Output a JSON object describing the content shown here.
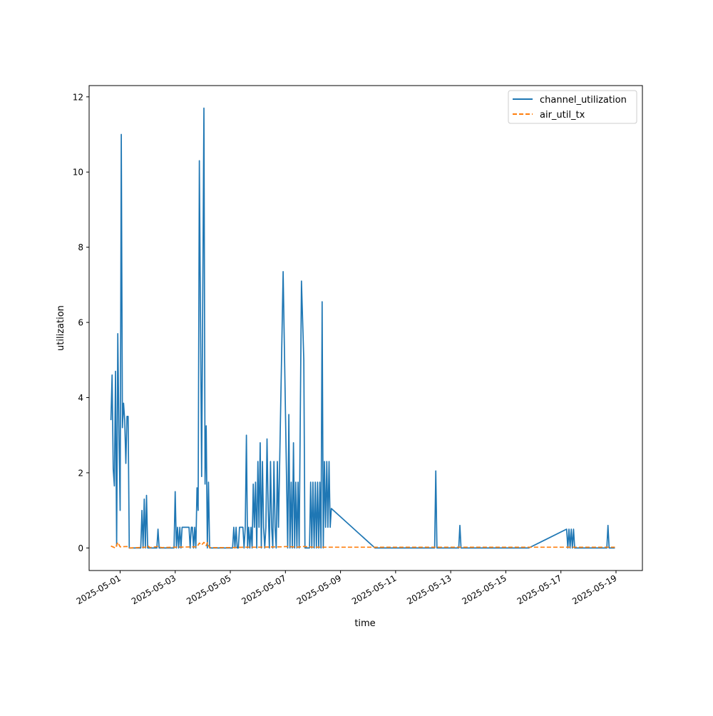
{
  "chart_data": {
    "type": "line",
    "title": "",
    "xlabel": "time",
    "ylabel": "utilization",
    "xlim": [
      "2025-04-29T21:00",
      "2025-05-19T23:00"
    ],
    "ylim": [
      -0.6,
      12.3
    ],
    "y_ticks": [
      0,
      2,
      4,
      6,
      8,
      10,
      12
    ],
    "x_ticks": [
      "2025-05-01",
      "2025-05-03",
      "2025-05-05",
      "2025-05-07",
      "2025-05-09",
      "2025-05-11",
      "2025-05-13",
      "2025-05-15",
      "2025-05-17",
      "2025-05-19"
    ],
    "grid": false,
    "legend": "top-right",
    "colors": {
      "channel_utilization": "#1f77b4",
      "air_util_tx": "#ff7f0e"
    },
    "series": [
      {
        "name": "channel_utilization",
        "style": "solid",
        "points": [
          [
            "2025-04-30T16:00",
            3.4
          ],
          [
            "2025-04-30T17:00",
            4.6
          ],
          [
            "2025-04-30T18:00",
            2.1
          ],
          [
            "2025-04-30T19:00",
            1.65
          ],
          [
            "2025-04-30T20:00",
            4.7
          ],
          [
            "2025-04-30T21:00",
            0.05
          ],
          [
            "2025-04-30T22:00",
            5.7
          ],
          [
            "2025-04-30T23:00",
            3.0
          ],
          [
            "2025-05-01T00:00",
            1.0
          ],
          [
            "2025-05-01T01:00",
            11.0
          ],
          [
            "2025-05-01T02:00",
            3.2
          ],
          [
            "2025-05-01T03:00",
            3.85
          ],
          [
            "2025-05-01T04:00",
            3.4
          ],
          [
            "2025-05-01T05:00",
            2.25
          ],
          [
            "2025-05-01T06:00",
            3.5
          ],
          [
            "2025-05-01T07:00",
            3.5
          ],
          [
            "2025-05-01T08:00",
            0.0
          ],
          [
            "2025-05-01T15:00",
            0.0
          ],
          [
            "2025-05-01T18:00",
            0.0
          ],
          [
            "2025-05-01T19:00",
            1.0
          ],
          [
            "2025-05-01T20:00",
            0.0
          ],
          [
            "2025-05-01T21:00",
            1.3
          ],
          [
            "2025-05-01T22:00",
            0.0
          ],
          [
            "2025-05-01T23:00",
            1.4
          ],
          [
            "2025-05-02T00:00",
            0.0
          ],
          [
            "2025-05-02T08:00",
            0.0
          ],
          [
            "2025-05-02T09:00",
            0.5
          ],
          [
            "2025-05-02T10:00",
            0.0
          ],
          [
            "2025-05-02T23:00",
            0.0
          ],
          [
            "2025-05-03T00:00",
            1.5
          ],
          [
            "2025-05-03T01:00",
            0.0
          ],
          [
            "2025-05-03T02:00",
            0.55
          ],
          [
            "2025-05-03T03:00",
            0.0
          ],
          [
            "2025-05-03T04:00",
            0.55
          ],
          [
            "2025-05-03T05:00",
            0.0
          ],
          [
            "2025-05-03T06:00",
            0.55
          ],
          [
            "2025-05-03T12:00",
            0.55
          ],
          [
            "2025-05-03T13:00",
            0.0
          ],
          [
            "2025-05-03T14:00",
            0.55
          ],
          [
            "2025-05-03T15:00",
            0.55
          ],
          [
            "2025-05-03T16:00",
            0.0
          ],
          [
            "2025-05-03T17:00",
            0.55
          ],
          [
            "2025-05-03T18:00",
            0.0
          ],
          [
            "2025-05-03T19:00",
            1.6
          ],
          [
            "2025-05-03T20:00",
            1.0
          ],
          [
            "2025-05-03T21:00",
            10.3
          ],
          [
            "2025-05-03T23:00",
            1.9
          ],
          [
            "2025-05-04T01:00",
            11.7
          ],
          [
            "2025-05-04T02:00",
            1.7
          ],
          [
            "2025-05-04T03:00",
            3.25
          ],
          [
            "2025-05-04T04:00",
            0.0
          ],
          [
            "2025-05-04T05:00",
            1.75
          ],
          [
            "2025-05-04T06:00",
            0.0
          ],
          [
            "2025-05-05T02:00",
            0.0
          ],
          [
            "2025-05-05T03:00",
            0.55
          ],
          [
            "2025-05-05T04:00",
            0.0
          ],
          [
            "2025-05-05T05:00",
            0.55
          ],
          [
            "2025-05-05T06:00",
            0.0
          ],
          [
            "2025-05-05T07:00",
            0.0
          ],
          [
            "2025-05-05T08:00",
            0.55
          ],
          [
            "2025-05-05T11:00",
            0.55
          ],
          [
            "2025-05-05T12:00",
            0.0
          ],
          [
            "2025-05-05T13:00",
            0.55
          ],
          [
            "2025-05-05T14:00",
            3.0
          ],
          [
            "2025-05-05T15:00",
            0.0
          ],
          [
            "2025-05-05T16:00",
            0.55
          ],
          [
            "2025-05-05T17:00",
            0.0
          ],
          [
            "2025-05-05T18:00",
            0.55
          ],
          [
            "2025-05-05T19:00",
            0.0
          ],
          [
            "2025-05-05T20:00",
            1.7
          ],
          [
            "2025-05-05T21:00",
            0.55
          ],
          [
            "2025-05-05T22:00",
            1.75
          ],
          [
            "2025-05-05T23:00",
            0.0
          ],
          [
            "2025-05-06T00:00",
            2.3
          ],
          [
            "2025-05-06T01:00",
            0.55
          ],
          [
            "2025-05-06T02:00",
            2.8
          ],
          [
            "2025-05-06T03:00",
            0.0
          ],
          [
            "2025-05-06T04:00",
            2.3
          ],
          [
            "2025-05-06T05:00",
            0.55
          ],
          [
            "2025-05-06T06:00",
            0.0
          ],
          [
            "2025-05-06T07:00",
            0.55
          ],
          [
            "2025-05-06T08:00",
            2.9
          ],
          [
            "2025-05-06T09:00",
            1.0
          ],
          [
            "2025-05-06T10:00",
            0.0
          ],
          [
            "2025-05-06T11:00",
            2.3
          ],
          [
            "2025-05-06T12:00",
            0.55
          ],
          [
            "2025-05-06T13:00",
            0.0
          ],
          [
            "2025-05-06T14:00",
            2.3
          ],
          [
            "2025-05-06T15:00",
            0.55
          ],
          [
            "2025-05-06T16:00",
            0.0
          ],
          [
            "2025-05-06T17:00",
            2.3
          ],
          [
            "2025-05-06T18:00",
            0.55
          ],
          [
            "2025-05-06T22:00",
            7.35
          ],
          [
            "2025-05-07T02:00",
            0.0
          ],
          [
            "2025-05-07T03:00",
            3.55
          ],
          [
            "2025-05-07T04:00",
            0.0
          ],
          [
            "2025-05-07T05:00",
            1.75
          ],
          [
            "2025-05-07T06:00",
            0.0
          ],
          [
            "2025-05-07T07:00",
            2.8
          ],
          [
            "2025-05-07T08:00",
            0.0
          ],
          [
            "2025-05-07T09:00",
            1.75
          ],
          [
            "2025-05-07T10:00",
            0.0
          ],
          [
            "2025-05-07T11:00",
            1.75
          ],
          [
            "2025-05-07T12:00",
            0.0
          ],
          [
            "2025-05-07T14:00",
            7.1
          ],
          [
            "2025-05-07T16:00",
            5.0
          ],
          [
            "2025-05-07T17:00",
            0.0
          ],
          [
            "2025-05-07T21:00",
            0.0
          ],
          [
            "2025-05-07T22:00",
            1.75
          ],
          [
            "2025-05-07T23:00",
            0.0
          ],
          [
            "2025-05-08T00:00",
            1.75
          ],
          [
            "2025-05-08T01:00",
            0.0
          ],
          [
            "2025-05-08T02:00",
            1.75
          ],
          [
            "2025-05-08T03:00",
            0.0
          ],
          [
            "2025-05-08T04:00",
            1.75
          ],
          [
            "2025-05-08T05:00",
            0.0
          ],
          [
            "2025-05-08T06:00",
            1.75
          ],
          [
            "2025-05-08T07:00",
            0.0
          ],
          [
            "2025-05-08T08:00",
            6.55
          ],
          [
            "2025-05-08T09:00",
            0.0
          ],
          [
            "2025-05-08T10:00",
            2.3
          ],
          [
            "2025-05-08T11:00",
            0.55
          ],
          [
            "2025-05-08T12:00",
            2.3
          ],
          [
            "2025-05-08T13:00",
            0.55
          ],
          [
            "2025-05-08T14:00",
            2.3
          ],
          [
            "2025-05-08T15:00",
            0.55
          ],
          [
            "2025-05-08T16:00",
            1.05
          ],
          [
            "2025-05-10T06:00",
            0.0
          ],
          [
            "2025-05-12T10:00",
            0.0
          ],
          [
            "2025-05-12T11:00",
            2.05
          ],
          [
            "2025-05-12T12:00",
            0.0
          ],
          [
            "2025-05-13T07:00",
            0.0
          ],
          [
            "2025-05-13T08:00",
            0.6
          ],
          [
            "2025-05-13T09:00",
            0.0
          ],
          [
            "2025-05-15T20:00",
            0.0
          ],
          [
            "2025-05-17T05:00",
            0.5
          ],
          [
            "2025-05-17T06:00",
            0.0
          ],
          [
            "2025-05-17T07:00",
            0.5
          ],
          [
            "2025-05-17T08:00",
            0.0
          ],
          [
            "2025-05-17T09:00",
            0.5
          ],
          [
            "2025-05-17T10:00",
            0.0
          ],
          [
            "2025-05-17T11:00",
            0.5
          ],
          [
            "2025-05-17T12:00",
            0.0
          ],
          [
            "2025-05-18T16:00",
            0.0
          ],
          [
            "2025-05-18T17:00",
            0.6
          ],
          [
            "2025-05-18T18:00",
            0.0
          ],
          [
            "2025-05-18T23:00",
            0.0
          ]
        ]
      },
      {
        "name": "air_util_tx",
        "style": "dashed",
        "points": [
          [
            "2025-04-30T16:00",
            0.05
          ],
          [
            "2025-04-30T20:00",
            0.0
          ],
          [
            "2025-04-30T22:00",
            0.15
          ],
          [
            "2025-05-01T00:00",
            0.03
          ],
          [
            "2025-05-01T06:00",
            0.04
          ],
          [
            "2025-05-01T08:00",
            0.0
          ],
          [
            "2025-05-01T22:00",
            0.02
          ],
          [
            "2025-05-02T00:00",
            0.06
          ],
          [
            "2025-05-02T02:00",
            0.01
          ],
          [
            "2025-05-02T09:00",
            0.04
          ],
          [
            "2025-05-02T12:00",
            0.01
          ],
          [
            "2025-05-03T00:00",
            0.02
          ],
          [
            "2025-05-03T19:00",
            0.03
          ],
          [
            "2025-05-03T21:00",
            0.13
          ],
          [
            "2025-05-03T23:00",
            0.08
          ],
          [
            "2025-05-04T01:00",
            0.15
          ],
          [
            "2025-05-04T03:00",
            0.06
          ],
          [
            "2025-05-04T04:00",
            0.14
          ],
          [
            "2025-05-04T06:00",
            0.01
          ],
          [
            "2025-05-05T02:00",
            0.01
          ],
          [
            "2025-05-05T12:00",
            0.02
          ],
          [
            "2025-05-06T00:00",
            0.02
          ],
          [
            "2025-05-06T20:00",
            0.03
          ],
          [
            "2025-05-07T02:00",
            0.04
          ],
          [
            "2025-05-07T10:00",
            0.02
          ],
          [
            "2025-05-07T16:00",
            0.04
          ],
          [
            "2025-05-08T00:00",
            0.02
          ],
          [
            "2025-05-08T16:00",
            0.02
          ],
          [
            "2025-05-10T06:00",
            0.02
          ],
          [
            "2025-05-13T00:00",
            0.02
          ],
          [
            "2025-05-17T00:00",
            0.02
          ],
          [
            "2025-05-18T23:00",
            0.02
          ]
        ]
      }
    ]
  }
}
